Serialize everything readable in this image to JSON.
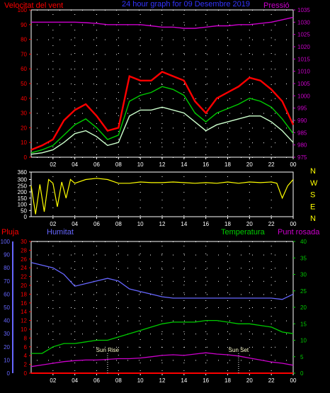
{
  "colors": {
    "wind": "#ff0000",
    "gust": "#ff0000",
    "avg": "#00cc00",
    "calm": "#ccffcc",
    "pressure": "#cc00cc",
    "direction": "#ffff00",
    "rain": "#ff0000",
    "humidity": "#6666ff",
    "temperature": "#00cc00",
    "dewpoint": "#cc00cc",
    "title": "#3333ff",
    "axis": "#ffffff",
    "grid": "#ffffff"
  },
  "chart_data": [
    {
      "type": "line",
      "title": "24 hour graph for 09 Desembre 2019",
      "ylabel_left": "Velocitat del vent",
      "ylabel_right": "Pressió",
      "x_ticks": [
        "02",
        "04",
        "06",
        "08",
        "10",
        "12",
        "14",
        "16",
        "18",
        "20",
        "22",
        "00"
      ],
      "ylim_left": [
        0,
        100
      ],
      "y_ticks_left": [
        0,
        10,
        20,
        30,
        40,
        50,
        60,
        70,
        80,
        90,
        100
      ],
      "ylim_right": [
        975,
        1035
      ],
      "y_ticks_right": [
        975,
        980,
        985,
        990,
        995,
        1000,
        1005,
        1010,
        1015,
        1020,
        1025,
        1030,
        1035
      ],
      "x_hours": [
        0,
        1,
        2,
        3,
        4,
        5,
        6,
        7,
        8,
        9,
        10,
        11,
        12,
        13,
        14,
        15,
        16,
        17,
        18,
        19,
        20,
        21,
        22,
        23,
        24
      ],
      "series": [
        {
          "key": "gust",
          "values": [
            5,
            8,
            12,
            25,
            32,
            36,
            28,
            18,
            20,
            55,
            52,
            52,
            58,
            55,
            52,
            38,
            30,
            40,
            44,
            48,
            54,
            52,
            46,
            38,
            22
          ]
        },
        {
          "key": "avg",
          "values": [
            3,
            5,
            8,
            15,
            22,
            26,
            20,
            12,
            15,
            38,
            42,
            44,
            48,
            46,
            42,
            30,
            24,
            30,
            33,
            36,
            40,
            38,
            34,
            26,
            16
          ]
        },
        {
          "key": "calm",
          "values": [
            2,
            3,
            5,
            10,
            16,
            18,
            14,
            8,
            10,
            28,
            32,
            32,
            34,
            32,
            30,
            24,
            18,
            22,
            24,
            26,
            28,
            28,
            24,
            18,
            10
          ]
        },
        {
          "key": "pressure",
          "axis": "right",
          "values": [
            1030,
            1030,
            1030,
            1030,
            1030,
            1029.8,
            1029.5,
            1029,
            1029,
            1029,
            1029,
            1028.5,
            1028,
            1028,
            1027.5,
            1027.5,
            1028,
            1028.5,
            1028.5,
            1029,
            1029,
            1029.5,
            1030,
            1031,
            1032
          ]
        }
      ]
    },
    {
      "type": "line",
      "ylim": [
        0,
        360
      ],
      "y_ticks": [
        0,
        50,
        100,
        150,
        200,
        250,
        300,
        360
      ],
      "compass": [
        "N",
        "W",
        "S",
        "E",
        "N"
      ],
      "x_ticks": [
        "02",
        "04",
        "06",
        "08",
        "10",
        "12",
        "14",
        "16",
        "18",
        "20",
        "22",
        "00"
      ],
      "series": [
        {
          "key": "direction",
          "x_hours": [
            0,
            0.4,
            0.8,
            1.2,
            1.6,
            2.0,
            2.4,
            2.8,
            3.2,
            3.6,
            4.0,
            5.0,
            6.0,
            7.0,
            8.0,
            9,
            10,
            11,
            12,
            13,
            14,
            15,
            16,
            17,
            18,
            19,
            20,
            21,
            22,
            22.5,
            23,
            23.5,
            24
          ],
          "values": [
            250,
            20,
            260,
            40,
            300,
            270,
            80,
            280,
            150,
            300,
            270,
            300,
            310,
            300,
            270,
            270,
            280,
            275,
            275,
            280,
            275,
            270,
            275,
            270,
            280,
            270,
            280,
            275,
            280,
            270,
            150,
            250,
            300
          ]
        }
      ]
    },
    {
      "type": "line",
      "ylabels": [
        "Pluja",
        "Humitat",
        "Temperatura",
        "Punt rosada"
      ],
      "x_ticks": [
        "02",
        "04",
        "06",
        "08",
        "10",
        "12",
        "14",
        "16",
        "18",
        "20",
        "22",
        "00"
      ],
      "ylim_humidity": [
        0,
        100
      ],
      "y_ticks_humidity": [
        0,
        10,
        20,
        30,
        40,
        50,
        60,
        70,
        80,
        90,
        100
      ],
      "ylim_rain": [
        0,
        30
      ],
      "y_ticks_rain": [
        0,
        2,
        4,
        6,
        8,
        10,
        12,
        14,
        16,
        18,
        20,
        22,
        24,
        26,
        28,
        30
      ],
      "ylim_temp": [
        0,
        40
      ],
      "y_ticks_temp": [
        0,
        5,
        10,
        15,
        20,
        25,
        30,
        35,
        40
      ],
      "annotations": [
        "Sun Rise",
        "Sun Set"
      ],
      "annotation_hours": [
        7,
        19
      ],
      "x_hours": [
        0,
        1,
        2,
        3,
        4,
        5,
        6,
        7,
        8,
        9,
        10,
        11,
        12,
        13,
        14,
        15,
        16,
        17,
        18,
        19,
        20,
        21,
        22,
        23,
        24
      ],
      "series": [
        {
          "key": "humidity",
          "values": [
            84,
            82,
            80,
            75,
            66,
            68,
            70,
            72,
            70,
            64,
            62,
            60,
            58,
            57,
            57,
            57,
            57,
            57,
            57,
            57,
            57,
            57,
            57,
            56,
            60
          ]
        },
        {
          "key": "temperature",
          "axis": "temp",
          "values": [
            6,
            6,
            8,
            9,
            9,
            9.5,
            10,
            10,
            11,
            12,
            13,
            14,
            15,
            15.5,
            15.5,
            15.5,
            16,
            16,
            15.5,
            15,
            15,
            14.5,
            14,
            12.5,
            12
          ]
        },
        {
          "key": "dewpoint",
          "axis": "temp",
          "values": [
            2,
            2.5,
            3,
            3.5,
            3.8,
            4,
            4,
            4.2,
            4.4,
            4.4,
            4.6,
            5,
            5.4,
            5.6,
            5.4,
            5.8,
            6.2,
            5.8,
            5.6,
            5.2,
            4.6,
            4,
            3.4,
            3,
            2.4
          ]
        },
        {
          "key": "rain",
          "axis": "rain",
          "values": [
            0,
            0,
            0,
            0,
            0,
            0,
            0,
            0,
            0,
            0,
            0,
            0,
            0,
            0,
            0,
            0,
            0,
            0,
            0,
            0,
            0,
            0,
            0,
            0,
            0
          ]
        }
      ]
    }
  ]
}
